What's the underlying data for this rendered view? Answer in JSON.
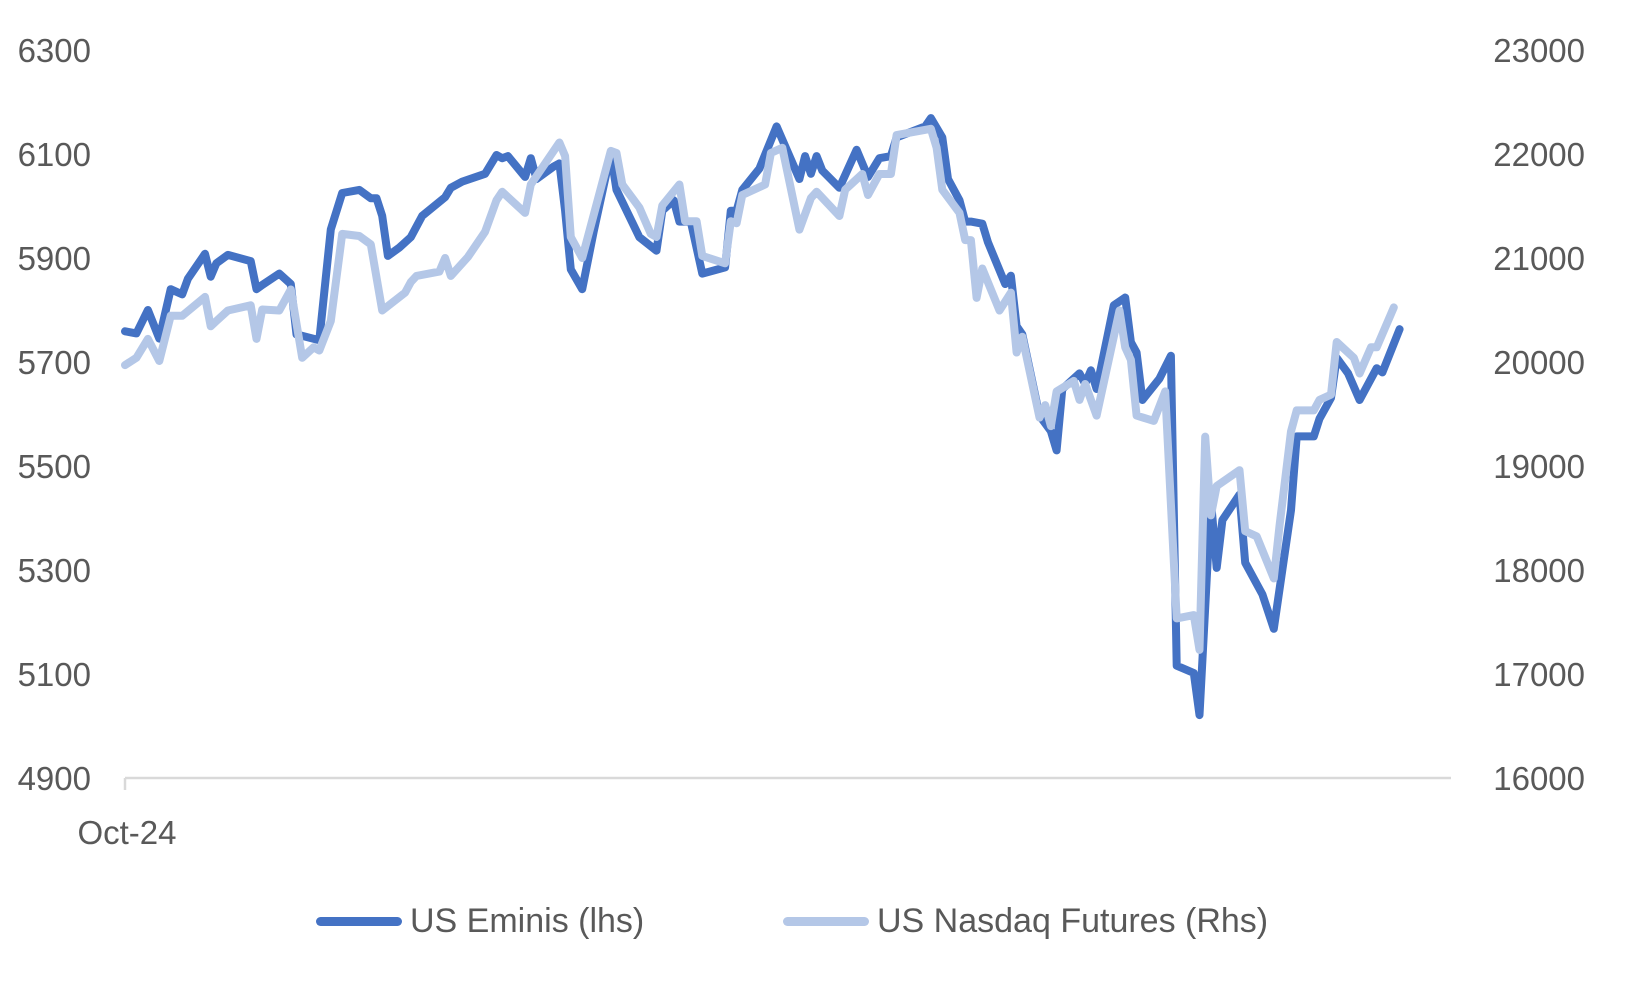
{
  "chart_data": {
    "type": "line",
    "title": "",
    "xlabel": "",
    "x_tick_labels": [
      "Oct-24"
    ],
    "xlim": [
      "2024-10-01",
      "2025-05-21"
    ],
    "y_left": {
      "ylim": [
        4900,
        6300
      ],
      "ticks": [
        "4900",
        "5100",
        "5300",
        "5500",
        "5700",
        "5900",
        "6100",
        "6300"
      ]
    },
    "y_right": {
      "ylim": [
        16000,
        23000
      ],
      "ticks": [
        "16000",
        "17000",
        "18000",
        "19000",
        "20000",
        "21000",
        "22000",
        "23000"
      ]
    },
    "grid": false,
    "legend_position": "bottom",
    "series": [
      {
        "name": "US Eminis (lhs)",
        "axis": "left",
        "color": "#4472C4",
        "points": [
          [
            "2024-10-01",
            5759
          ],
          [
            "2024-10-03",
            5755
          ],
          [
            "2024-10-05",
            5800
          ],
          [
            "2024-10-07",
            5745
          ],
          [
            "2024-10-09",
            5840
          ],
          [
            "2024-10-11",
            5830
          ],
          [
            "2024-10-12",
            5860
          ],
          [
            "2024-10-15",
            5908
          ],
          [
            "2024-10-16",
            5864
          ],
          [
            "2024-10-17",
            5890
          ],
          [
            "2024-10-19",
            5906
          ],
          [
            "2024-10-23",
            5894
          ],
          [
            "2024-10-24",
            5840
          ],
          [
            "2024-10-25",
            5848
          ],
          [
            "2024-10-28",
            5870
          ],
          [
            "2024-10-30",
            5850
          ],
          [
            "2024-10-31",
            5753
          ],
          [
            "2024-11-04",
            5742
          ],
          [
            "2024-11-06",
            5955
          ],
          [
            "2024-11-08",
            6025
          ],
          [
            "2024-11-11",
            6031
          ],
          [
            "2024-11-13",
            6015
          ],
          [
            "2024-11-14",
            6015
          ],
          [
            "2024-11-15",
            5981
          ],
          [
            "2024-11-16",
            5904
          ],
          [
            "2024-11-18",
            5920
          ],
          [
            "2024-11-20",
            5940
          ],
          [
            "2024-11-22",
            5981
          ],
          [
            "2024-11-26",
            6017
          ],
          [
            "2024-11-27",
            6035
          ],
          [
            "2024-11-29",
            6047
          ],
          [
            "2024-12-03",
            6062
          ],
          [
            "2024-12-05",
            6098
          ],
          [
            "2024-12-06",
            6092
          ],
          [
            "2024-12-07",
            6096
          ],
          [
            "2024-12-10",
            6056
          ],
          [
            "2024-12-11",
            6092
          ],
          [
            "2024-12-12",
            6052
          ],
          [
            "2024-12-15",
            6076
          ],
          [
            "2024-12-16",
            6082
          ],
          [
            "2024-12-17",
            5991
          ],
          [
            "2024-12-18",
            5878
          ],
          [
            "2024-12-20",
            5840
          ],
          [
            "2024-12-22",
            5951
          ],
          [
            "2024-12-25",
            6102
          ],
          [
            "2024-12-26",
            6031
          ],
          [
            "2024-12-30",
            5940
          ],
          [
            "2025-01-02",
            5914
          ],
          [
            "2025-01-03",
            5991
          ],
          [
            "2025-01-05",
            6011
          ],
          [
            "2025-01-06",
            5970
          ],
          [
            "2025-01-08",
            5970
          ],
          [
            "2025-01-10",
            5870
          ],
          [
            "2025-01-14",
            5882
          ],
          [
            "2025-01-15",
            5991
          ],
          [
            "2025-01-16",
            5991
          ],
          [
            "2025-01-17",
            6031
          ],
          [
            "2025-01-20",
            6072
          ],
          [
            "2025-01-23",
            6153
          ],
          [
            "2025-01-27",
            6052
          ],
          [
            "2025-01-28",
            6096
          ],
          [
            "2025-01-29",
            6062
          ],
          [
            "2025-01-30",
            6096
          ],
          [
            "2025-01-31",
            6068
          ],
          [
            "2025-02-03",
            6035
          ],
          [
            "2025-02-06",
            6108
          ],
          [
            "2025-02-08",
            6056
          ],
          [
            "2025-02-10",
            6092
          ],
          [
            "2025-02-12",
            6096
          ],
          [
            "2025-02-13",
            6132
          ],
          [
            "2025-02-18",
            6153
          ],
          [
            "2025-02-19",
            6169
          ],
          [
            "2025-02-21",
            6132
          ],
          [
            "2025-02-22",
            6052
          ],
          [
            "2025-02-24",
            6011
          ],
          [
            "2025-02-25",
            5970
          ],
          [
            "2025-02-26",
            5970
          ],
          [
            "2025-02-28",
            5966
          ],
          [
            "2025-03-01",
            5930
          ],
          [
            "2025-03-04",
            5850
          ],
          [
            "2025-03-05",
            5866
          ],
          [
            "2025-03-06",
            5769
          ],
          [
            "2025-03-07",
            5753
          ],
          [
            "2025-03-10",
            5597
          ],
          [
            "2025-03-12",
            5567
          ],
          [
            "2025-03-13",
            5530
          ],
          [
            "2025-03-14",
            5648
          ],
          [
            "2025-03-17",
            5678
          ],
          [
            "2025-03-18",
            5658
          ],
          [
            "2025-03-19",
            5684
          ],
          [
            "2025-03-20",
            5648
          ],
          [
            "2025-03-23",
            5809
          ],
          [
            "2025-03-25",
            5824
          ],
          [
            "2025-03-26",
            5738
          ],
          [
            "2025-03-27",
            5718
          ],
          [
            "2025-03-28",
            5627
          ],
          [
            "2025-03-31",
            5668
          ],
          [
            "2025-04-02",
            5712
          ],
          [
            "2025-04-03",
            5116
          ],
          [
            "2025-04-06",
            5102
          ],
          [
            "2025-04-07",
            5021
          ],
          [
            "2025-04-09",
            5435
          ],
          [
            "2025-04-10",
            5304
          ],
          [
            "2025-04-11",
            5396
          ],
          [
            "2025-04-14",
            5445
          ],
          [
            "2025-04-15",
            5314
          ],
          [
            "2025-04-18",
            5253
          ],
          [
            "2025-04-20",
            5187
          ],
          [
            "2025-04-23",
            5415
          ],
          [
            "2025-04-24",
            5557
          ],
          [
            "2025-04-27",
            5557
          ],
          [
            "2025-04-28",
            5591
          ],
          [
            "2025-04-30",
            5631
          ],
          [
            "2025-05-01",
            5708
          ],
          [
            "2025-05-03",
            5678
          ],
          [
            "2025-05-05",
            5627
          ],
          [
            "2025-05-08",
            5688
          ],
          [
            "2025-05-09",
            5680
          ],
          [
            "2025-05-12",
            5763
          ]
        ]
      },
      {
        "name": "US Nasdaq Futures (Rhs)",
        "axis": "right",
        "color": "#B4C7E7",
        "points": [
          [
            "2024-10-01",
            19970
          ],
          [
            "2024-10-03",
            20040
          ],
          [
            "2024-10-05",
            20222
          ],
          [
            "2024-10-07",
            20010
          ],
          [
            "2024-10-09",
            20444
          ],
          [
            "2024-10-11",
            20444
          ],
          [
            "2024-10-15",
            20626
          ],
          [
            "2024-10-16",
            20343
          ],
          [
            "2024-10-17",
            20394
          ],
          [
            "2024-10-19",
            20495
          ],
          [
            "2024-10-23",
            20545
          ],
          [
            "2024-10-24",
            20222
          ],
          [
            "2024-10-25",
            20505
          ],
          [
            "2024-10-28",
            20495
          ],
          [
            "2024-10-30",
            20697
          ],
          [
            "2024-11-01",
            20040
          ],
          [
            "2024-11-03",
            20141
          ],
          [
            "2024-11-04",
            20111
          ],
          [
            "2024-11-06",
            20394
          ],
          [
            "2024-11-08",
            21232
          ],
          [
            "2024-11-11",
            21212
          ],
          [
            "2024-11-13",
            21131
          ],
          [
            "2024-11-15",
            20495
          ],
          [
            "2024-11-19",
            20667
          ],
          [
            "2024-11-20",
            20768
          ],
          [
            "2024-11-21",
            20828
          ],
          [
            "2024-11-25",
            20869
          ],
          [
            "2024-11-26",
            21000
          ],
          [
            "2024-11-27",
            20828
          ],
          [
            "2024-11-30",
            21010
          ],
          [
            "2024-12-03",
            21253
          ],
          [
            "2024-12-05",
            21556
          ],
          [
            "2024-12-06",
            21637
          ],
          [
            "2024-12-10",
            21434
          ],
          [
            "2024-12-11",
            21707
          ],
          [
            "2024-12-16",
            22111
          ],
          [
            "2024-12-17",
            21980
          ],
          [
            "2024-12-18",
            21202
          ],
          [
            "2024-12-20",
            21000
          ],
          [
            "2024-12-25",
            22030
          ],
          [
            "2024-12-26",
            22010
          ],
          [
            "2024-12-27",
            21707
          ],
          [
            "2024-12-30",
            21485
          ],
          [
            "2025-01-01",
            21232
          ],
          [
            "2025-01-02",
            21202
          ],
          [
            "2025-01-03",
            21505
          ],
          [
            "2025-01-06",
            21707
          ],
          [
            "2025-01-07",
            21354
          ],
          [
            "2025-01-09",
            21354
          ],
          [
            "2025-01-10",
            21020
          ],
          [
            "2025-01-14",
            20949
          ],
          [
            "2025-01-15",
            21354
          ],
          [
            "2025-01-16",
            21334
          ],
          [
            "2025-01-17",
            21606
          ],
          [
            "2025-01-21",
            21707
          ],
          [
            "2025-01-22",
            22010
          ],
          [
            "2025-01-24",
            22061
          ],
          [
            "2025-01-27",
            21273
          ],
          [
            "2025-01-29",
            21576
          ],
          [
            "2025-01-30",
            21637
          ],
          [
            "2025-02-03",
            21404
          ],
          [
            "2025-02-04",
            21657
          ],
          [
            "2025-02-07",
            21808
          ],
          [
            "2025-02-08",
            21606
          ],
          [
            "2025-02-10",
            21808
          ],
          [
            "2025-02-12",
            21808
          ],
          [
            "2025-02-13",
            22182
          ],
          [
            "2025-02-19",
            22242
          ],
          [
            "2025-02-20",
            22061
          ],
          [
            "2025-02-21",
            21657
          ],
          [
            "2025-02-24",
            21434
          ],
          [
            "2025-02-25",
            21172
          ],
          [
            "2025-02-26",
            21172
          ],
          [
            "2025-02-27",
            20616
          ],
          [
            "2025-02-28",
            20899
          ],
          [
            "2025-03-03",
            20495
          ],
          [
            "2025-03-05",
            20667
          ],
          [
            "2025-03-06",
            20091
          ],
          [
            "2025-03-07",
            20242
          ],
          [
            "2025-03-10",
            19465
          ],
          [
            "2025-03-11",
            19586
          ],
          [
            "2025-03-12",
            19384
          ],
          [
            "2025-03-13",
            19717
          ],
          [
            "2025-03-16",
            19818
          ],
          [
            "2025-03-17",
            19636
          ],
          [
            "2025-03-18",
            19788
          ],
          [
            "2025-03-20",
            19485
          ],
          [
            "2025-03-24",
            20495
          ],
          [
            "2025-03-25",
            20141
          ],
          [
            "2025-03-26",
            20020
          ],
          [
            "2025-03-27",
            19485
          ],
          [
            "2025-03-30",
            19434
          ],
          [
            "2025-04-01",
            19717
          ],
          [
            "2025-04-03",
            17535
          ],
          [
            "2025-04-06",
            17566
          ],
          [
            "2025-04-07",
            17232
          ],
          [
            "2025-04-08",
            19283
          ],
          [
            "2025-04-09",
            18525
          ],
          [
            "2025-04-10",
            18808
          ],
          [
            "2025-04-14",
            18960
          ],
          [
            "2025-04-15",
            18374
          ],
          [
            "2025-04-17",
            18323
          ],
          [
            "2025-04-20",
            17919
          ],
          [
            "2025-04-21",
            18424
          ],
          [
            "2025-04-23",
            19333
          ],
          [
            "2025-04-24",
            19535
          ],
          [
            "2025-04-27",
            19535
          ],
          [
            "2025-04-28",
            19636
          ],
          [
            "2025-04-30",
            19687
          ],
          [
            "2025-05-01",
            20192
          ],
          [
            "2025-05-04",
            20040
          ],
          [
            "2025-05-05",
            19889
          ],
          [
            "2025-05-07",
            20141
          ],
          [
            "2025-05-08",
            20141
          ],
          [
            "2025-05-11",
            20525
          ]
        ]
      }
    ]
  }
}
